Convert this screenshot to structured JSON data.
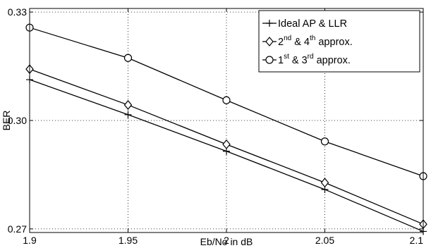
{
  "chart_data": {
    "type": "line",
    "title": "",
    "xlabel": "Eb/No in dB",
    "ylabel": "BER",
    "xlim": [
      1.9,
      2.1
    ],
    "ylim": [
      0.269,
      0.331
    ],
    "x": [
      1.9,
      1.95,
      2.0,
      2.05,
      2.1
    ],
    "x_tick_values": [
      1.9,
      1.95,
      2.0,
      2.05,
      2.1
    ],
    "x_tick_labels": [
      "1.9",
      "1.95",
      "2",
      "2.05",
      "2.1"
    ],
    "y_tick_values": [
      0.27,
      0.3,
      0.33
    ],
    "y_tick_labels": [
      "0.27",
      "0.30",
      "0.33"
    ],
    "grid": true,
    "legend_position": "top-right",
    "colors": {
      "line": "#000000",
      "grid": "#000000",
      "background": "#ffffff"
    },
    "series": [
      {
        "name": "Ideal AP & LLR",
        "legend_parts": [
          {
            "text": "Ideal AP & LLR",
            "sup": ""
          }
        ],
        "marker": "plus",
        "values": [
          0.3113,
          0.3016,
          0.2915,
          0.2809,
          0.2693
        ]
      },
      {
        "name": "2nd & 4th approx.",
        "legend_parts": [
          {
            "text": "2",
            "sup": "nd"
          },
          {
            "text": " & 4",
            "sup": "th"
          },
          {
            "text": " approx.",
            "sup": ""
          }
        ],
        "marker": "diamond",
        "values": [
          0.3142,
          0.3043,
          0.2934,
          0.2828,
          0.2713
        ]
      },
      {
        "name": "1st & 3rd approx.",
        "legend_parts": [
          {
            "text": "1",
            "sup": "st"
          },
          {
            "text": " & 3",
            "sup": "rd"
          },
          {
            "text": " approx.",
            "sup": ""
          }
        ],
        "marker": "circle",
        "values": [
          0.3257,
          0.3173,
          0.3056,
          0.2942,
          0.2846
        ]
      }
    ]
  }
}
